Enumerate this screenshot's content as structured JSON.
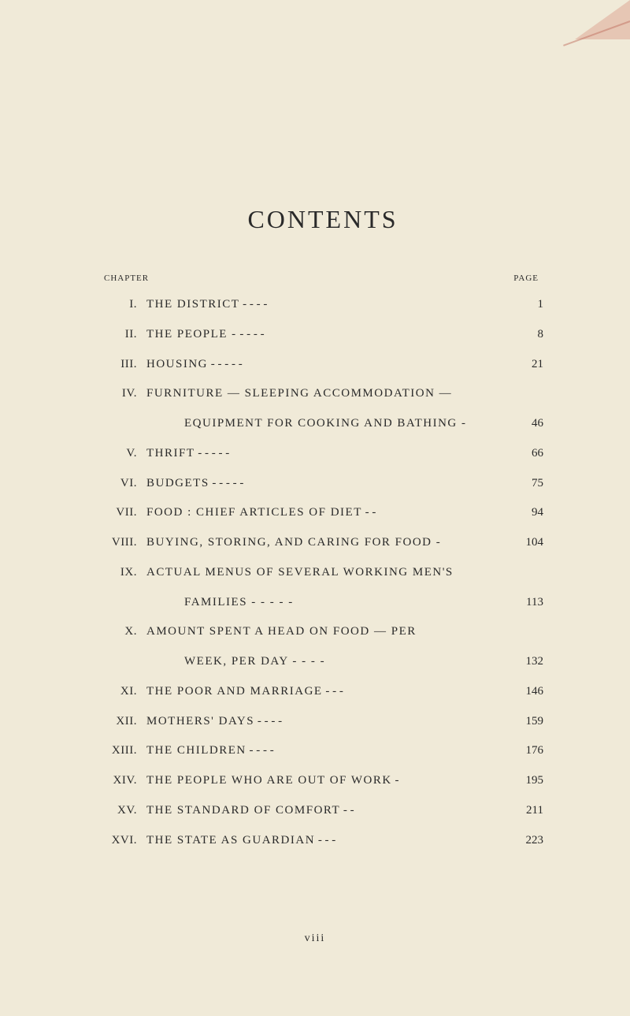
{
  "heading": "CONTENTS",
  "colhead_left": "CHAPTER",
  "colhead_right": "PAGE",
  "entries": [
    {
      "roman": "I.",
      "title": "THE DISTRICT",
      "dash": "    -    -    -    -",
      "page": "1",
      "cont": null
    },
    {
      "roman": "II.",
      "title": "THE PEOPLE -",
      "dash": "    -    -    -    -",
      "page": "8",
      "cont": null
    },
    {
      "roman": "III.",
      "title": "HOUSING",
      "dash": "    -    -    -    -    -",
      "page": "21",
      "cont": null
    },
    {
      "roman": "IV.",
      "title": "FURNITURE — SLEEPING  ACCOMMODATION —",
      "dash": "",
      "page": "",
      "cont": {
        "title": "EQUIPMENT FOR COOKING AND BATHING -",
        "page": "46"
      }
    },
    {
      "roman": "V.",
      "title": "THRIFT",
      "dash": "    -    -    -    -    -",
      "page": "66",
      "cont": null
    },
    {
      "roman": "VI.",
      "title": "BUDGETS",
      "dash": "    -    -    -    -    -",
      "page": "75",
      "cont": null
    },
    {
      "roman": "VII.",
      "title": "FOOD :  CHIEF ARTICLES OF DIET",
      "dash": "    -    -",
      "page": "94",
      "cont": null
    },
    {
      "roman": "VIII.",
      "title": "BUYING, STORING, AND CARING FOR FOOD -",
      "dash": "",
      "page": "104",
      "cont": null
    },
    {
      "roman": "IX.",
      "title": "ACTUAL MENUS OF SEVERAL WORKING MEN'S",
      "dash": "",
      "page": "",
      "cont": {
        "title": "FAMILIES -    -    -    -    -",
        "page": "113"
      }
    },
    {
      "roman": "X.",
      "title": "AMOUNT  SPENT  A  HEAD  ON  FOOD — PER",
      "dash": "",
      "page": "",
      "cont": {
        "title": "WEEK,  PER DAY  -    -    -    -",
        "page": "132"
      }
    },
    {
      "roman": "XI.",
      "title": "THE POOR AND MARRIAGE",
      "dash": "  -    -    -",
      "page": "146",
      "cont": null
    },
    {
      "roman": "XII.",
      "title": "MOTHERS' DAYS",
      "dash": "    -    -    -    -",
      "page": "159",
      "cont": null
    },
    {
      "roman": "XIII.",
      "title": "THE CHILDREN",
      "dash": "    -    -    -    -",
      "page": "176",
      "cont": null
    },
    {
      "roman": "XIV.",
      "title": "THE PEOPLE WHO ARE OUT OF WORK",
      "dash": "    -",
      "page": "195",
      "cont": null
    },
    {
      "roman": "XV.",
      "title": "THE STANDARD OF COMFORT",
      "dash": "    -    -",
      "page": "211",
      "cont": null
    },
    {
      "roman": "XVI.",
      "title": "THE STATE AS GUARDIAN",
      "dash": "  -    -    -",
      "page": "223",
      "cont": null
    }
  ],
  "footer": "viii"
}
